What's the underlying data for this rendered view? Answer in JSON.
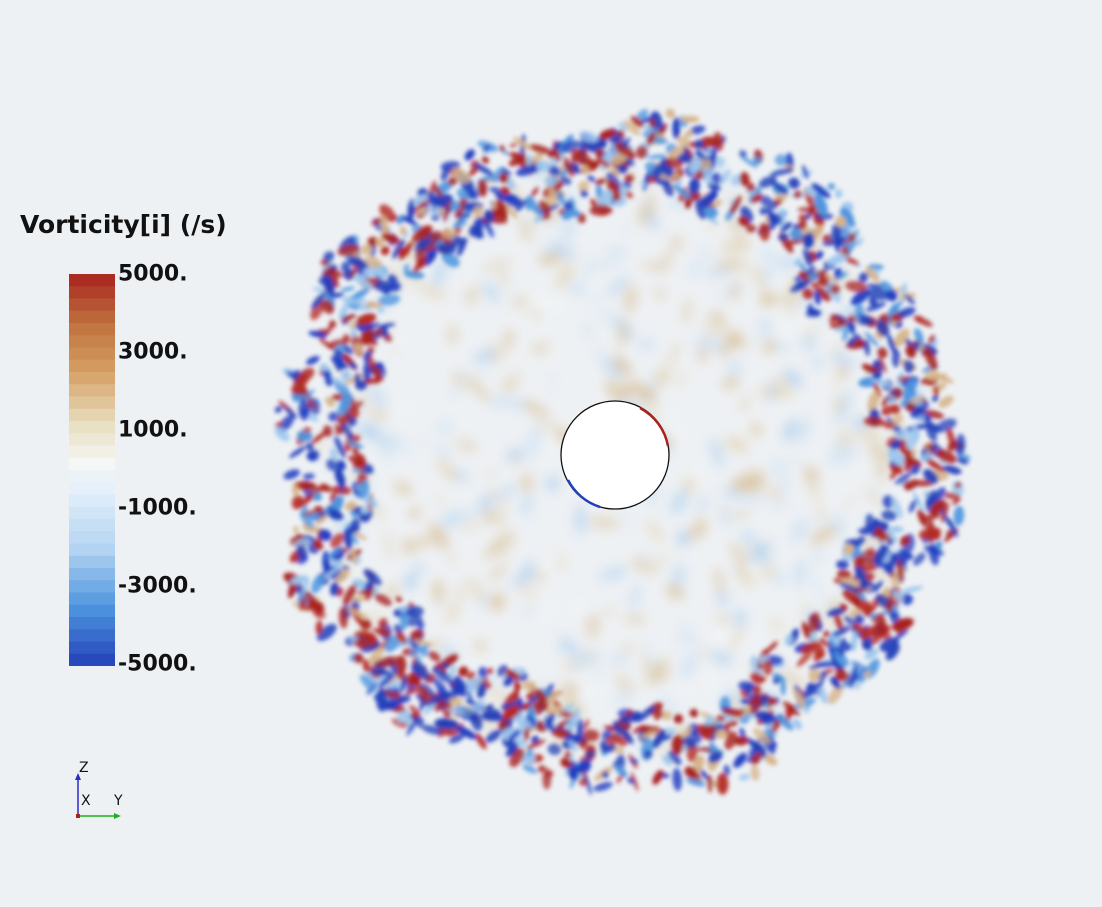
{
  "legend": {
    "title": "Vorticity[i] (/s)",
    "ticks": [
      "5000.",
      "3000.",
      "1000.",
      "-1000.",
      "-3000.",
      "-5000."
    ],
    "colors": {
      "max": "#a8221f",
      "high": "#c98a4d",
      "mid_high": "#e6e0c8",
      "mid": "#f2f5f7",
      "mid_low": "#c8e0f5",
      "low": "#4e95de",
      "min": "#2240b8"
    }
  },
  "axes": {
    "up_label": "Z",
    "out_label": "X",
    "right_label": "Y",
    "colors": {
      "z": "#2a2ac8",
      "y": "#1fb01f",
      "x": "#b01f1f"
    }
  },
  "scene": {
    "background": "#eef1f4",
    "core_fill": "#ffffff"
  }
}
